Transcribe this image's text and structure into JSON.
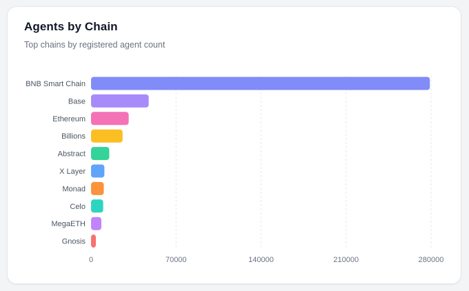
{
  "card": {
    "title": "Agents by Chain",
    "subtitle": "Top chains by registered agent count"
  },
  "chart_data": {
    "type": "bar",
    "orientation": "horizontal",
    "title": "Agents by Chain",
    "subtitle": "Top chains by registered agent count",
    "xlabel": "",
    "ylabel": "",
    "xlim": [
      0,
      280000
    ],
    "xticks": [
      0,
      70000,
      140000,
      210000,
      280000
    ],
    "grid": true,
    "legend": "none",
    "categories": [
      "BNB Smart Chain",
      "Base",
      "Ethereum",
      "Billions",
      "Abstract",
      "X Layer",
      "Monad",
      "Celo",
      "MegaETH",
      "Gnosis"
    ],
    "values": [
      279000,
      47500,
      31000,
      26000,
      15000,
      11000,
      10500,
      10000,
      8500,
      4000
    ],
    "colors": [
      "#818cf8",
      "#a78bfa",
      "#f472b6",
      "#fbbf24",
      "#34d399",
      "#60a5fa",
      "#fb923c",
      "#2dd4bf",
      "#c084fc",
      "#f87171"
    ]
  }
}
